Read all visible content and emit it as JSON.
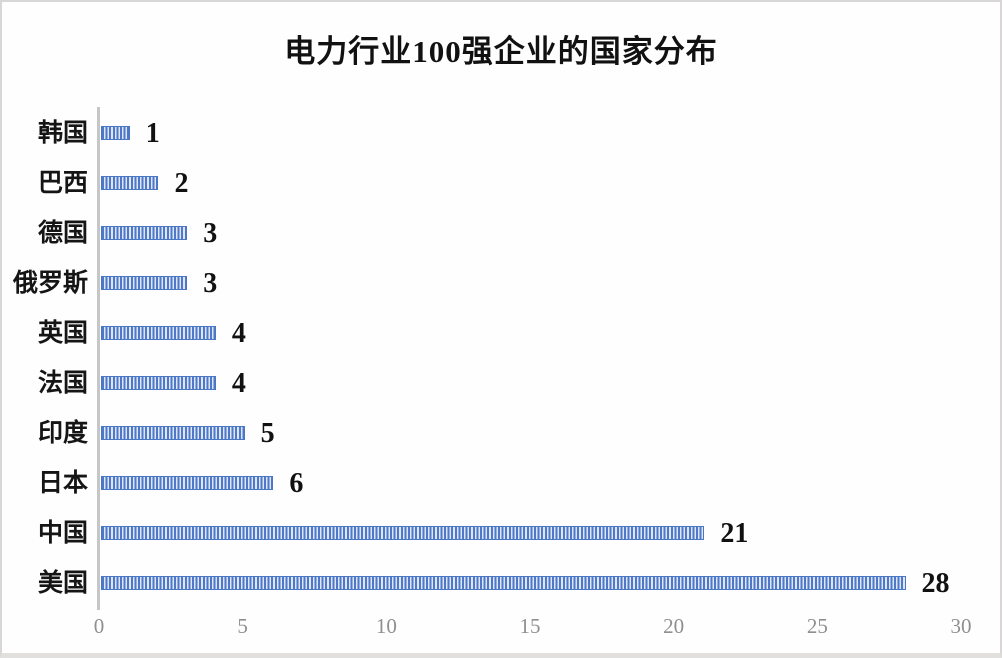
{
  "frame": {
    "background": "#fefefe",
    "border_color": "#d8d6d6"
  },
  "chart_data": {
    "type": "bar",
    "orientation": "horizontal",
    "title": "电力行业100强企业的国家分布",
    "categories": [
      "韩国",
      "巴西",
      "德国",
      "俄罗斯",
      "英国",
      "法国",
      "印度",
      "日本",
      "中国",
      "美国"
    ],
    "values": [
      1,
      2,
      3,
      3,
      4,
      4,
      5,
      6,
      21,
      28
    ],
    "data_labels": [
      "1",
      "2",
      "3",
      "3",
      "4",
      "4",
      "5",
      "6",
      "21",
      "28"
    ],
    "xlabel": "",
    "ylabel": "",
    "xlim": [
      0,
      30
    ],
    "xticks": [
      "0",
      "5",
      "10",
      "15",
      "20",
      "25",
      "30"
    ],
    "xtick_values": [
      0,
      5,
      10,
      15,
      20,
      25,
      30
    ],
    "grid": false,
    "legend": null,
    "bar_fill": {
      "pattern": "vertical-stripes",
      "stripe_color": "#4e79c8",
      "gap_color": "#dde5f6",
      "border_color": "#4a76c6"
    },
    "axis_line_color": "#c6c6c6",
    "tick_label_color": "#8f8f8f",
    "title_color": "#111111",
    "value_label_color": "#111111",
    "category_label_color": "#151515"
  }
}
